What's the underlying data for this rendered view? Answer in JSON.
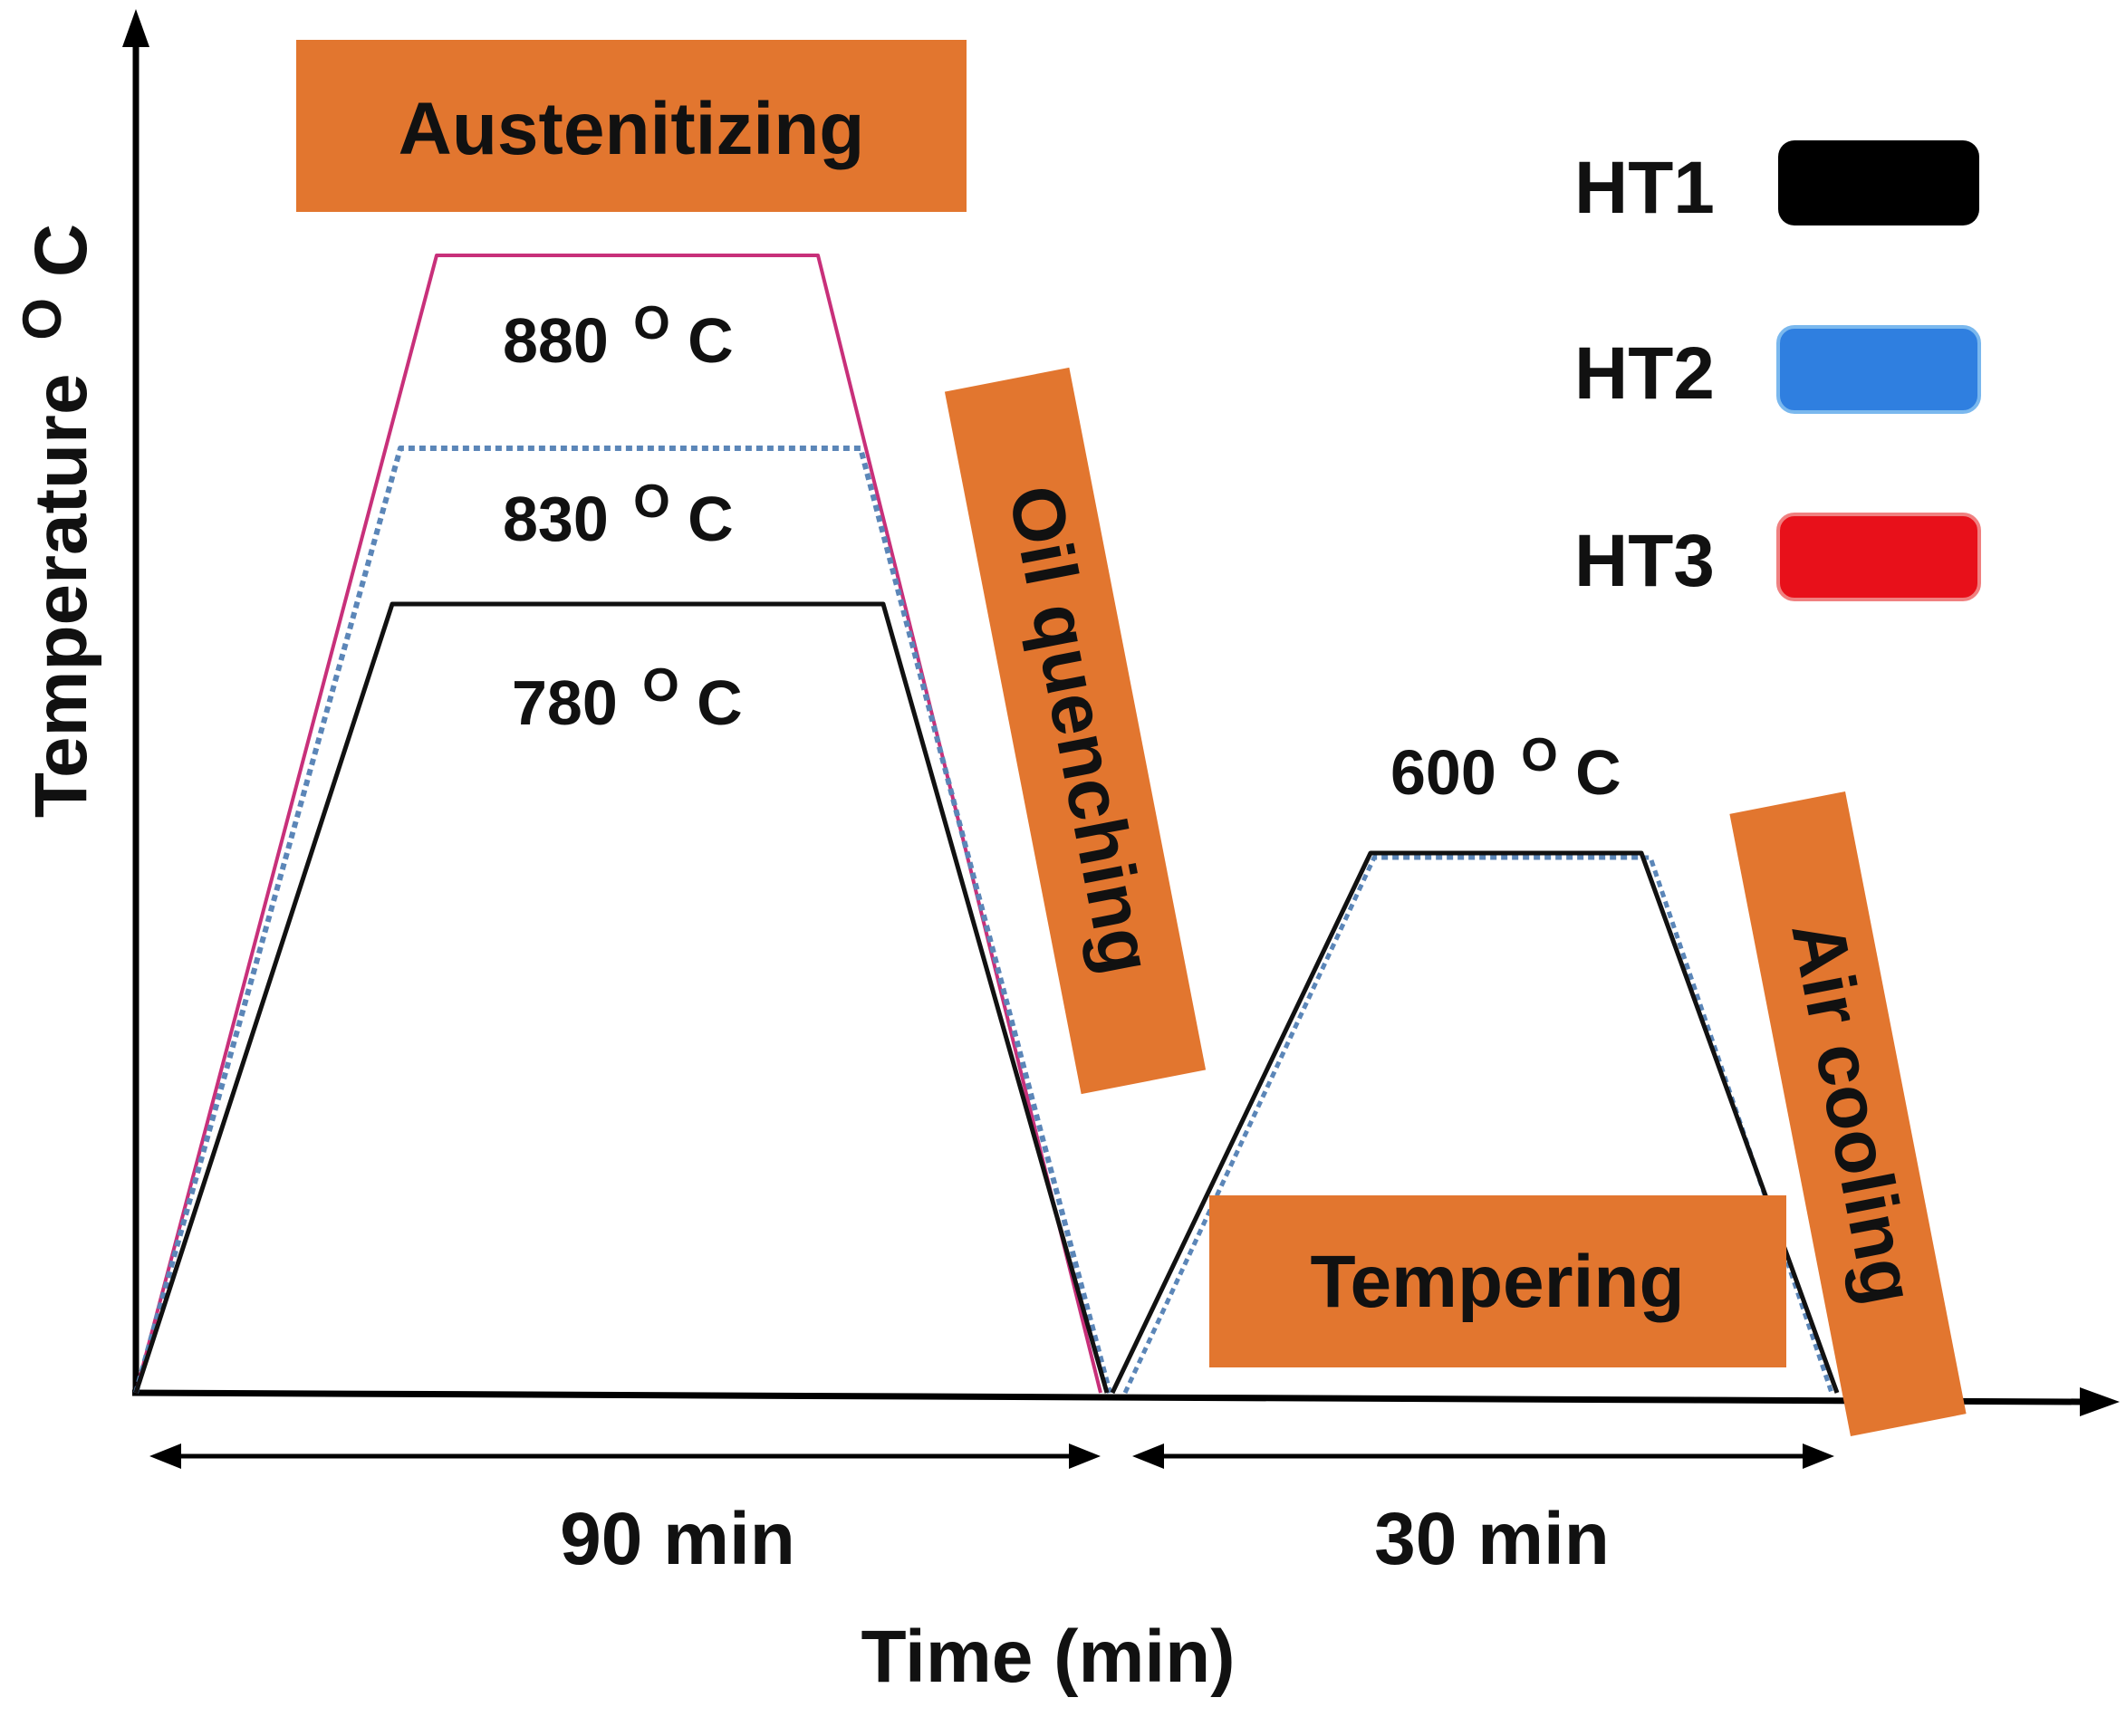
{
  "axes": {
    "y_label": "Temperature",
    "y_unit": "O",
    "y_unit_suffix": "C",
    "x_label": "Time (min)"
  },
  "stages": {
    "austenitizing": "Austenitizing",
    "oil_quenching": "Oil quenching",
    "tempering": "Tempering",
    "air_cooling": "Air cooling"
  },
  "temperatures": [
    {
      "value": "880",
      "sup": "O",
      "suffix": "C"
    },
    {
      "value": "830",
      "sup": "O",
      "suffix": "C"
    },
    {
      "value": "780",
      "sup": "O",
      "suffix": "C"
    },
    {
      "value": "600",
      "sup": "O",
      "suffix": "C"
    }
  ],
  "durations": {
    "austenitizing": "90 min",
    "tempering": "30 min"
  },
  "legend": [
    {
      "label": "HT1",
      "color": "#000000"
    },
    {
      "label": "HT2",
      "color": "#2f7fe0"
    },
    {
      "label": "HT3",
      "color": "#e8101a"
    }
  ],
  "colors": {
    "stage_box": "#e2762f",
    "ht1_line": "#111111",
    "ht2_line": "#5b86b8",
    "ht3_line": "#c8307a"
  }
}
